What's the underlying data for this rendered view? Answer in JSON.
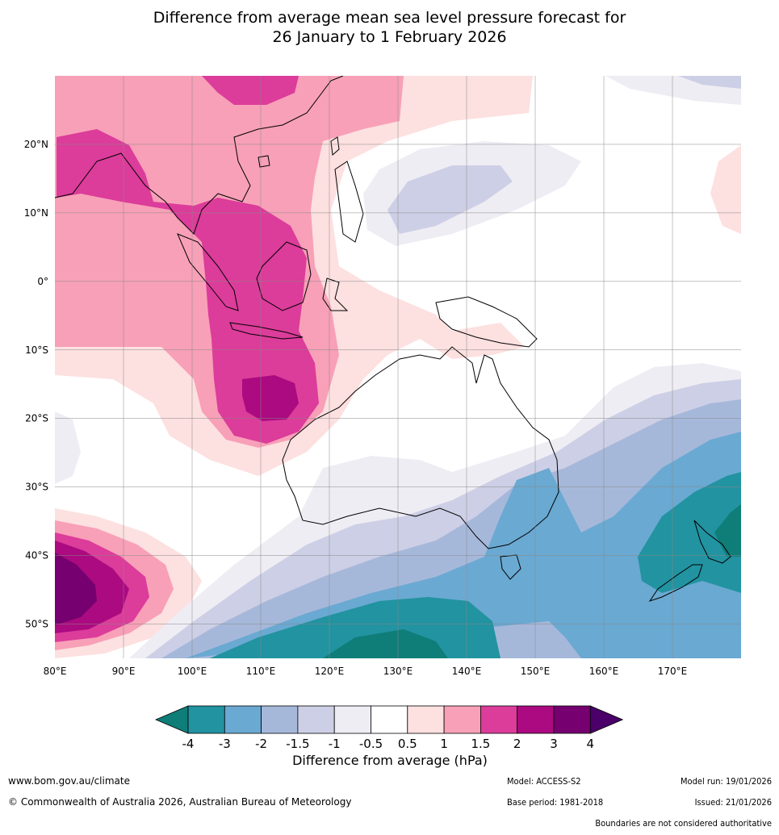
{
  "title": {
    "line1": "Difference from average mean sea level pressure forecast for",
    "line2": "26 January to 1 February 2026"
  },
  "map": {
    "lon_labels": [
      "80°E",
      "90°E",
      "100°E",
      "110°E",
      "120°E",
      "130°E",
      "140°E",
      "150°E",
      "160°E",
      "170°E"
    ],
    "lat_labels": [
      "20°N",
      "10°N",
      "0°",
      "10°S",
      "20°S",
      "30°S",
      "40°S",
      "50°S"
    ],
    "lon_range": [
      80,
      180
    ],
    "lat_range": [
      -55,
      30
    ]
  },
  "colorbar": {
    "tick_labels": [
      "-4",
      "-3",
      "-2",
      "-1.5",
      "-1",
      "-0.5",
      "0.5",
      "1",
      "1.5",
      "2",
      "3",
      "4"
    ],
    "colors": [
      "#0f7d78",
      "#2293a0",
      "#6aa9d2",
      "#a6b8da",
      "#cdcfe6",
      "#efedf4",
      "#ffffff",
      "#fde0e0",
      "#f8a0b8",
      "#dc3c9a",
      "#ab0a80",
      "#760070",
      "#4a0068"
    ],
    "label": "Difference from average (hPa)"
  },
  "footer": {
    "website": "www.bom.gov.au/climate",
    "copyright": "© Commonwealth of Australia 2026, Australian Bureau of Meteorology",
    "model": "Model: ACCESS-S2",
    "base_period": "Base period: 1981-2018",
    "model_run": "Model run: 19/01/2026",
    "issued": "Issued: 21/01/2026",
    "disclaimer": "Boundaries are not considered authoritative"
  }
}
